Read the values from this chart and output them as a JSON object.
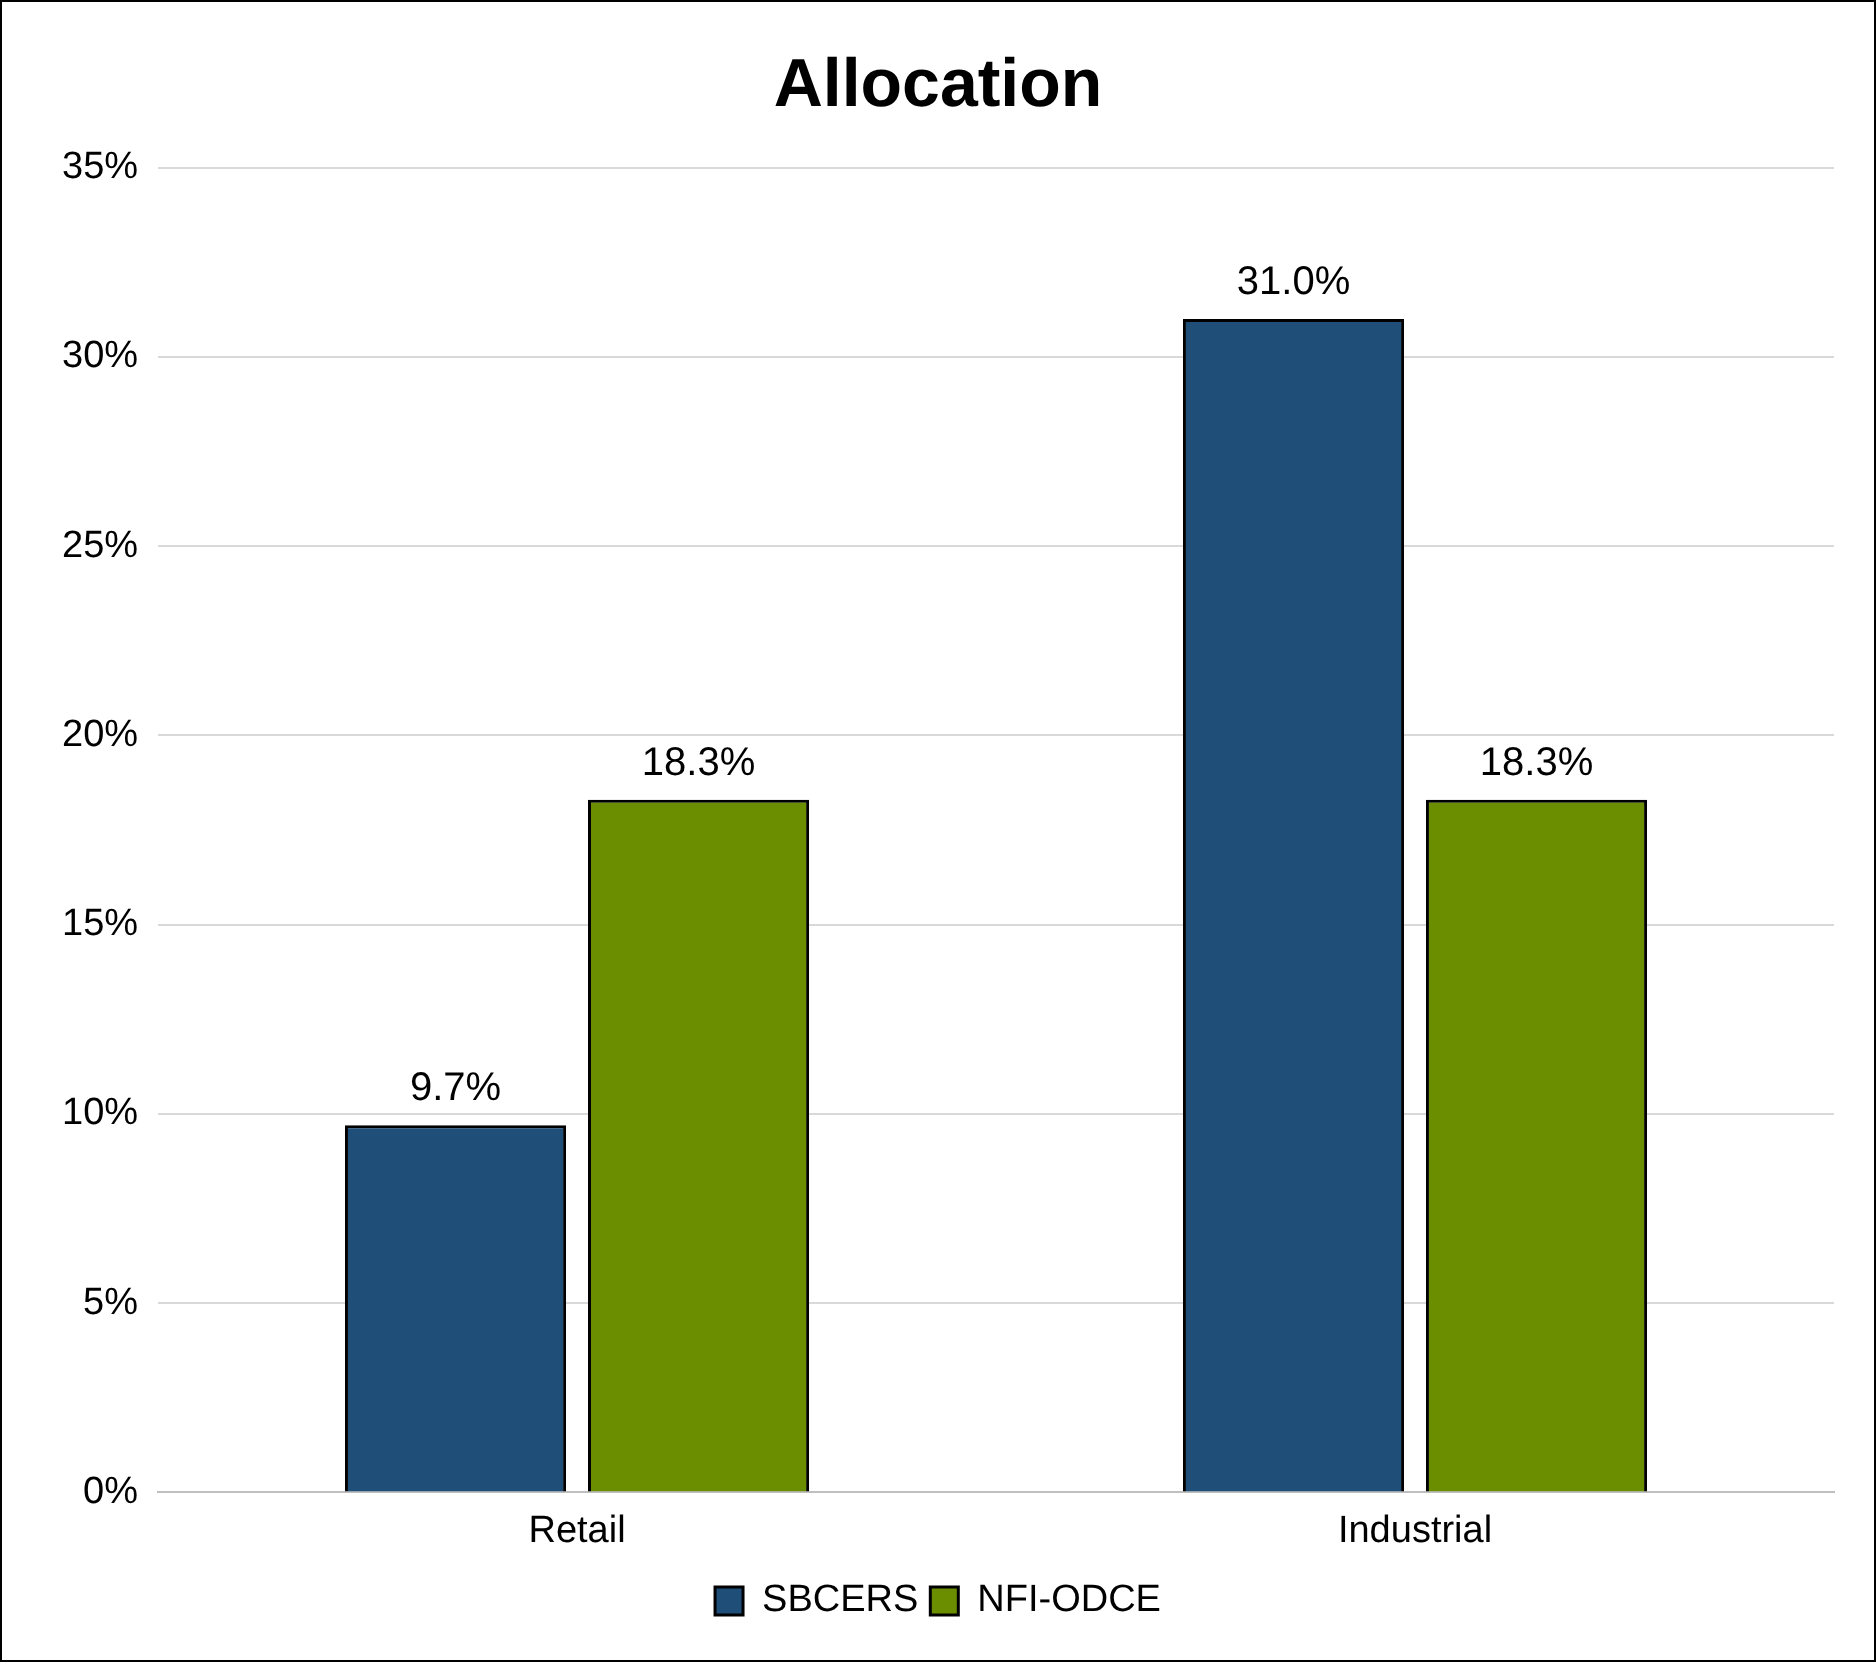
{
  "chart_data": {
    "type": "bar",
    "title": "Allocation",
    "categories": [
      "Retail",
      "Industrial"
    ],
    "series": [
      {
        "name": "SBCERS",
        "color": "#1f4e79",
        "values": [
          9.7,
          31.0
        ],
        "value_labels": [
          "9.7%",
          "31.0%"
        ]
      },
      {
        "name": "NFI-ODCE",
        "color": "#6b8e00",
        "values": [
          18.3,
          18.3
        ],
        "value_labels": [
          "18.3%",
          "18.3%"
        ]
      }
    ],
    "ylim": [
      0,
      35
    ],
    "yticks": [
      {
        "value": 0,
        "label": "0%"
      },
      {
        "value": 5,
        "label": "5%"
      },
      {
        "value": 10,
        "label": "10%"
      },
      {
        "value": 15,
        "label": "15%"
      },
      {
        "value": 20,
        "label": "20%"
      },
      {
        "value": 25,
        "label": "25%"
      },
      {
        "value": 30,
        "label": "30%"
      },
      {
        "value": 35,
        "label": "35%"
      }
    ],
    "grid": "y",
    "legend": "bottom"
  }
}
